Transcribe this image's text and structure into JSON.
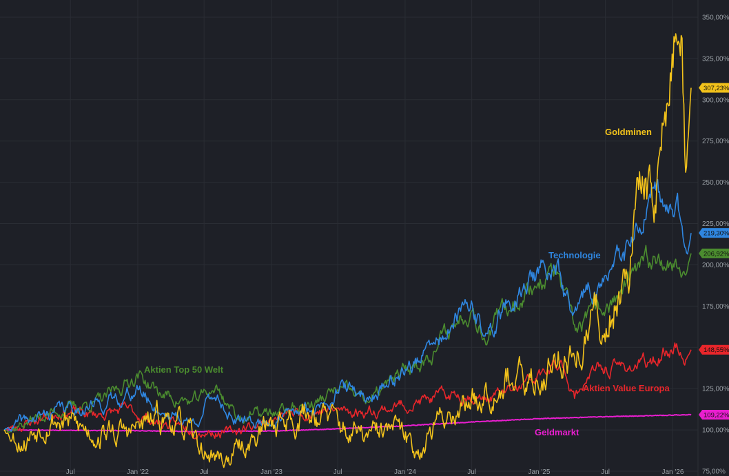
{
  "chart_data": {
    "type": "line",
    "ylim": [
      75,
      360
    ],
    "x_axis": {
      "start": "2021-01-01",
      "end": "2026-02-20",
      "visible_start": "2021-01-01",
      "visible_end": "2026-05-02"
    },
    "y_ticks": [
      {
        "value": 75,
        "label": "75,00%"
      },
      {
        "value": 100,
        "label": "100,00%"
      },
      {
        "value": 125,
        "label": "125,00%"
      },
      {
        "value": 150,
        "label": "150,00%"
      },
      {
        "value": 175,
        "label": "175,00%"
      },
      {
        "value": 200,
        "label": "200,00%"
      },
      {
        "value": 225,
        "label": "225,00%"
      },
      {
        "value": 250,
        "label": "250,00%"
      },
      {
        "value": 275,
        "label": "275,00%"
      },
      {
        "value": 300,
        "label": "300,00%"
      },
      {
        "value": 325,
        "label": "325,00%"
      },
      {
        "value": 350,
        "label": "350,00%"
      }
    ],
    "x_ticks": [
      {
        "date": "2021-07-01",
        "label": "Jul"
      },
      {
        "date": "2022-01-01",
        "label": "Jan '22"
      },
      {
        "date": "2022-07-01",
        "label": "Jul"
      },
      {
        "date": "2023-01-01",
        "label": "Jan '23"
      },
      {
        "date": "2023-07-01",
        "label": "Jul"
      },
      {
        "date": "2024-01-01",
        "label": "Jan '24"
      },
      {
        "date": "2024-07-01",
        "label": "Jul"
      },
      {
        "date": "2025-01-01",
        "label": "Jan '25"
      },
      {
        "date": "2025-07-01",
        "label": "Jul"
      },
      {
        "date": "2026-01-01",
        "label": "Jan '26"
      }
    ],
    "grid": true,
    "series": [
      {
        "name": "Geldmarkt",
        "color": "#e91ecf",
        "last_label": "109,22%",
        "points": [
          [
            "2021-01-01",
            100
          ],
          [
            "2022-01-01",
            99.5
          ],
          [
            "2022-06-01",
            99.0
          ],
          [
            "2023-01-01",
            99.3
          ],
          [
            "2023-06-01",
            100.4
          ],
          [
            "2024-01-01",
            102.5
          ],
          [
            "2024-07-01",
            104.8
          ],
          [
            "2025-01-01",
            106.8
          ],
          [
            "2025-07-01",
            108.0
          ],
          [
            "2026-02-20",
            109.22
          ]
        ]
      },
      {
        "name": "Aktien Value Europa",
        "color": "#e8262b",
        "last_label": "148,55%",
        "points": [
          [
            "2021-01-01",
            100
          ],
          [
            "2021-04-01",
            106
          ],
          [
            "2021-06-01",
            112
          ],
          [
            "2021-09-01",
            109
          ],
          [
            "2021-12-01",
            112
          ],
          [
            "2022-03-01",
            104
          ],
          [
            "2022-06-01",
            101
          ],
          [
            "2022-09-01",
            98
          ],
          [
            "2022-12-01",
            104
          ],
          [
            "2023-03-01",
            110
          ],
          [
            "2023-06-01",
            112
          ],
          [
            "2023-09-01",
            111
          ],
          [
            "2023-12-01",
            114
          ],
          [
            "2024-03-01",
            118
          ],
          [
            "2024-06-01",
            122
          ],
          [
            "2024-08-01",
            119
          ],
          [
            "2024-11-01",
            124
          ],
          [
            "2025-02-01",
            136
          ],
          [
            "2025-03-10",
            139
          ],
          [
            "2025-04-08",
            119
          ],
          [
            "2025-05-15",
            134
          ],
          [
            "2025-08-01",
            138
          ],
          [
            "2025-11-01",
            140
          ],
          [
            "2026-01-10",
            152
          ],
          [
            "2026-02-01",
            141
          ],
          [
            "2026-02-20",
            148.55
          ]
        ]
      },
      {
        "name": "Aktien Top 50 Welt",
        "color": "#4b8c2f",
        "last_label": "206,92%",
        "points": [
          [
            "2021-01-01",
            100
          ],
          [
            "2021-06-01",
            112
          ],
          [
            "2021-10-01",
            118
          ],
          [
            "2022-01-01",
            134
          ],
          [
            "2022-03-01",
            122
          ],
          [
            "2022-06-01",
            116
          ],
          [
            "2022-08-01",
            126
          ],
          [
            "2022-10-01",
            108
          ],
          [
            "2023-01-01",
            110
          ],
          [
            "2023-05-01",
            116
          ],
          [
            "2023-07-01",
            124
          ],
          [
            "2023-10-01",
            118
          ],
          [
            "2023-12-01",
            130
          ],
          [
            "2024-03-01",
            145
          ],
          [
            "2024-07-01",
            176
          ],
          [
            "2024-08-06",
            158
          ],
          [
            "2024-11-01",
            180
          ],
          [
            "2025-01-01",
            190
          ],
          [
            "2025-02-15",
            196
          ],
          [
            "2025-04-08",
            160
          ],
          [
            "2025-05-10",
            166
          ],
          [
            "2025-08-01",
            180
          ],
          [
            "2025-10-01",
            195
          ],
          [
            "2025-12-01",
            208
          ],
          [
            "2026-02-05",
            194
          ],
          [
            "2026-02-20",
            206.92
          ]
        ]
      },
      {
        "name": "Technologie",
        "color": "#2f86e0",
        "last_label": "219,30%",
        "points": [
          [
            "2021-01-01",
            100
          ],
          [
            "2021-06-01",
            112
          ],
          [
            "2021-10-01",
            116
          ],
          [
            "2022-01-01",
            124
          ],
          [
            "2022-03-01",
            112
          ],
          [
            "2022-06-01",
            104
          ],
          [
            "2022-08-01",
            122
          ],
          [
            "2022-10-01",
            104
          ],
          [
            "2023-01-01",
            106
          ],
          [
            "2023-05-01",
            112
          ],
          [
            "2023-07-01",
            126
          ],
          [
            "2023-10-01",
            120
          ],
          [
            "2023-12-01",
            132
          ],
          [
            "2024-03-01",
            146
          ],
          [
            "2024-07-01",
            176
          ],
          [
            "2024-08-06",
            155
          ],
          [
            "2024-11-01",
            183
          ],
          [
            "2025-01-01",
            194
          ],
          [
            "2025-02-15",
            200
          ],
          [
            "2025-04-08",
            164
          ],
          [
            "2025-05-10",
            183
          ],
          [
            "2025-08-01",
            198
          ],
          [
            "2025-10-01",
            220
          ],
          [
            "2025-11-05",
            238
          ],
          [
            "2026-01-15",
            230
          ],
          [
            "2026-02-10",
            208
          ],
          [
            "2026-02-20",
            219.3
          ]
        ]
      },
      {
        "name": "Goldminen",
        "color": "#f2c21b",
        "last_label": "307,23%",
        "points": [
          [
            "2021-01-01",
            100
          ],
          [
            "2021-03-01",
            95
          ],
          [
            "2021-05-01",
            110
          ],
          [
            "2021-08-01",
            100
          ],
          [
            "2021-12-01",
            98
          ],
          [
            "2022-04-01",
            108
          ],
          [
            "2022-07-01",
            86
          ],
          [
            "2022-09-01",
            82
          ],
          [
            "2023-01-01",
            104
          ],
          [
            "2023-05-01",
            112
          ],
          [
            "2023-08-01",
            98
          ],
          [
            "2023-10-01",
            95
          ],
          [
            "2023-12-01",
            100
          ],
          [
            "2024-02-01",
            88
          ],
          [
            "2024-05-01",
            112
          ],
          [
            "2024-07-01",
            118
          ],
          [
            "2024-10-01",
            136
          ],
          [
            "2024-12-01",
            124
          ],
          [
            "2025-03-01",
            148
          ],
          [
            "2025-04-08",
            140
          ],
          [
            "2025-06-01",
            168
          ],
          [
            "2025-07-01",
            160
          ],
          [
            "2025-09-01",
            205
          ],
          [
            "2025-10-15",
            255
          ],
          [
            "2025-11-05",
            235
          ],
          [
            "2025-12-20",
            300
          ],
          [
            "2026-01-10",
            340
          ],
          [
            "2026-01-25",
            350
          ],
          [
            "2026-02-05",
            253
          ],
          [
            "2026-02-20",
            307.23
          ]
        ]
      }
    ],
    "annotations": [
      {
        "text": "Goldminen",
        "series": "Goldminen"
      },
      {
        "text": "Technologie",
        "series": "Technologie"
      },
      {
        "text": "Aktien Top 50 Welt",
        "series": "Aktien Top 50 Welt"
      },
      {
        "text": "Aktien Value Europa",
        "series": "Aktien Value Europa"
      },
      {
        "text": "Geldmarkt",
        "series": "Geldmarkt"
      }
    ]
  }
}
